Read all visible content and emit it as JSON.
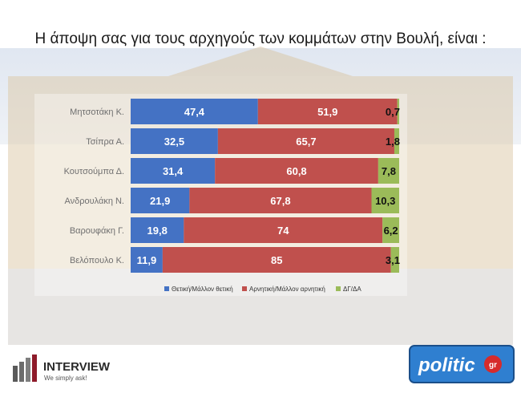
{
  "title": "Η άποψη σας για τους αρχηγούς των κομμάτων στην Βουλή,  είναι :",
  "chart_data": {
    "type": "bar",
    "orientation": "horizontal",
    "stacked": true,
    "categories": [
      "Μητσοτάκη Κ.",
      "Τσίπρα Α.",
      "Κουτσούμπα Δ.",
      "Ανδρουλάκη Ν.",
      "Βαρουφάκη Γ.",
      "Βελόπουλο Κ."
    ],
    "series": [
      {
        "name": "Θετική/Μάλλον θετική",
        "color": "#4472c4",
        "values": [
          47.4,
          32.5,
          31.4,
          21.9,
          19.8,
          11.9
        ],
        "labels": [
          "47,4",
          "32,5",
          "31,4",
          "21,9",
          "19,8",
          "11,9"
        ]
      },
      {
        "name": "Αρνητική/Μάλλον αρνητική",
        "color": "#c0504d",
        "values": [
          51.9,
          65.7,
          60.8,
          67.8,
          74,
          85
        ],
        "labels": [
          "51,9",
          "65,7",
          "60,8",
          "67,8",
          "74",
          "85"
        ]
      },
      {
        "name": "ΔΓ/ΔΑ",
        "color": "#9bbb59",
        "values": [
          0.7,
          1.8,
          7.8,
          10.3,
          6.2,
          3.1
        ],
        "labels": [
          "0,7",
          "1,8",
          "7,8",
          "10,3",
          "6,2",
          "3,1"
        ]
      }
    ],
    "legend_position": "bottom",
    "grid": false
  },
  "logos": {
    "interview": {
      "name": "INTERVIEW",
      "tagline": "We simply ask!",
      "icon": "bar-chart-icon"
    },
    "politic": {
      "name": "politic",
      "suffix": "gr"
    }
  }
}
